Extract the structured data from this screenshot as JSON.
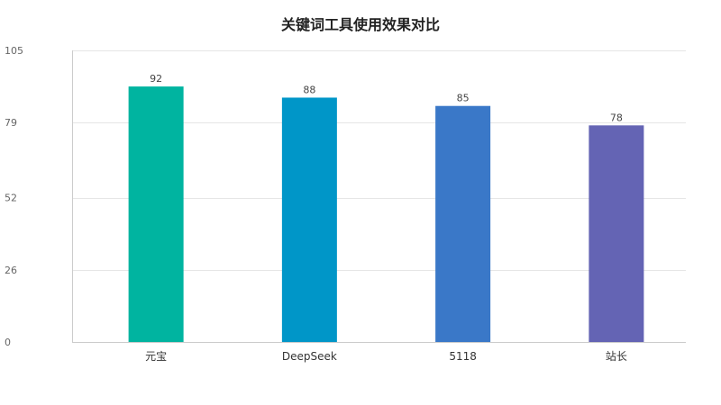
{
  "chart_data": {
    "type": "bar",
    "title": "关键词工具使用效果对比",
    "xlabel": "",
    "ylabel": "",
    "categories": [
      "元宝",
      "DeepSeek",
      "5118",
      "站长"
    ],
    "values": [
      92,
      88,
      85,
      78
    ],
    "ylim": [
      0,
      105
    ],
    "yticks": [
      0,
      26,
      52,
      79,
      105
    ],
    "colors": [
      "#00b4a0",
      "#0096c8",
      "#3a78c8",
      "#6464b4"
    ],
    "grid": true,
    "legend": "none"
  }
}
